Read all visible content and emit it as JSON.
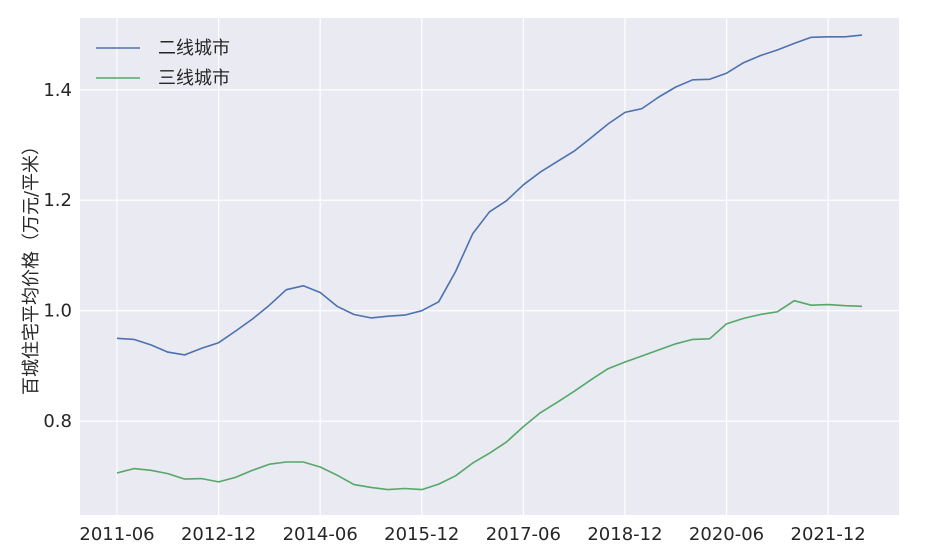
{
  "chart_data": {
    "type": "line",
    "title": "",
    "xlabel": "",
    "ylabel": "百城住宅平均价格（万元/平米）",
    "x": [
      "2011-06",
      "2011-09",
      "2011-12",
      "2012-03",
      "2012-06",
      "2012-09",
      "2012-12",
      "2013-03",
      "2013-06",
      "2013-09",
      "2013-12",
      "2014-03",
      "2014-06",
      "2014-09",
      "2014-12",
      "2015-03",
      "2015-06",
      "2015-09",
      "2015-12",
      "2016-03",
      "2016-06",
      "2016-09",
      "2016-12",
      "2017-03",
      "2017-06",
      "2017-09",
      "2017-12",
      "2018-03",
      "2018-06",
      "2018-09",
      "2018-12",
      "2019-03",
      "2019-06",
      "2019-09",
      "2019-12",
      "2020-03",
      "2020-06",
      "2020-09",
      "2020-12",
      "2021-03",
      "2021-06",
      "2021-09",
      "2021-12",
      "2022-03",
      "2022-06"
    ],
    "xticks": [
      "2011-06",
      "2012-12",
      "2014-06",
      "2015-12",
      "2017-06",
      "2018-12",
      "2020-06",
      "2021-12"
    ],
    "ylim": [
      0.63,
      1.53
    ],
    "yticks": [
      0.8,
      1.0,
      1.2,
      1.4
    ],
    "ytick_labels": [
      "0.8",
      "1.0",
      "1.2",
      "1.4"
    ],
    "grid": true,
    "legend_position": "top-left",
    "series": [
      {
        "name": "二线城市",
        "color": "#4c72b0",
        "values": [
          0.95,
          0.948,
          0.938,
          0.925,
          0.92,
          0.932,
          0.942,
          0.963,
          0.985,
          1.01,
          1.038,
          1.045,
          1.033,
          1.008,
          0.993,
          0.987,
          0.99,
          0.992,
          1.0,
          1.016,
          1.071,
          1.139,
          1.179,
          1.199,
          1.228,
          1.251,
          1.27,
          1.289,
          1.313,
          1.338,
          1.359,
          1.366,
          1.387,
          1.405,
          1.418,
          1.419,
          1.43,
          1.449,
          1.462,
          1.472,
          1.484,
          1.495,
          1.496,
          1.496,
          1.499
        ]
      },
      {
        "name": "三线城市",
        "color": "#55a868",
        "values": [
          0.706,
          0.714,
          0.711,
          0.705,
          0.695,
          0.696,
          0.69,
          0.698,
          0.711,
          0.722,
          0.726,
          0.726,
          0.717,
          0.702,
          0.685,
          0.68,
          0.676,
          0.678,
          0.676,
          0.686,
          0.701,
          0.724,
          0.742,
          0.762,
          0.79,
          0.815,
          0.834,
          0.854,
          0.875,
          0.895,
          0.907,
          0.918,
          0.929,
          0.94,
          0.948,
          0.949,
          0.976,
          0.986,
          0.993,
          0.998,
          1.018,
          1.01,
          1.011,
          1.009,
          1.008
        ]
      }
    ]
  }
}
